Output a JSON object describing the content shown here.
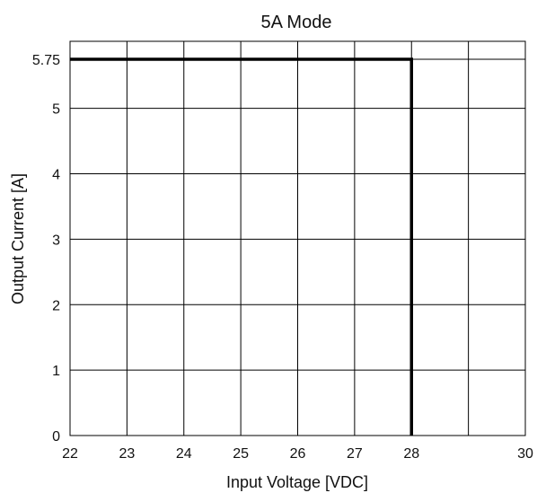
{
  "chart_data": {
    "type": "line",
    "title": "5A Mode",
    "xlabel": "Input Voltage [VDC]",
    "ylabel": "Output Current [A]",
    "xlim": [
      22,
      30
    ],
    "ylim": [
      0,
      5.75
    ],
    "x_ticks": [
      22,
      23,
      24,
      25,
      26,
      27,
      28,
      29,
      30
    ],
    "x_tick_labels": [
      "22",
      "23",
      "24",
      "25",
      "26",
      "27",
      "28",
      "",
      "30"
    ],
    "y_ticks": [
      0,
      1,
      2,
      3,
      4,
      5,
      5.75
    ],
    "y_tick_labels": [
      "0",
      "1",
      "2",
      "3",
      "4",
      "5",
      "5.75"
    ],
    "grid": true,
    "series": [
      {
        "x": [
          22,
          28,
          28
        ],
        "y": [
          5.75,
          5.75,
          0
        ],
        "color": "#000000"
      }
    ]
  }
}
